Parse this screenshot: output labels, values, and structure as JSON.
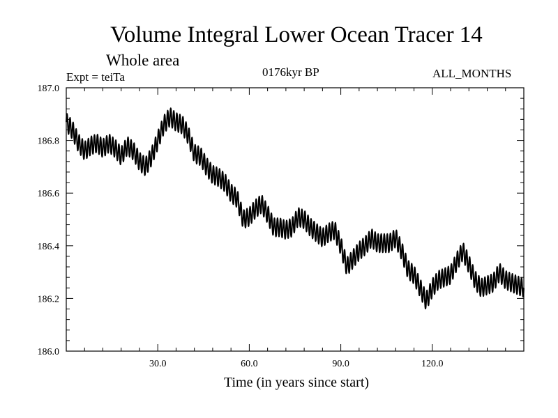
{
  "chart_data": {
    "type": "line",
    "title": "Volume Integral Lower Ocean Tracer 14",
    "subtitle": "Whole area",
    "annotations": {
      "experiment": "Expt = teiTa",
      "period": "0176kyr BP",
      "months": "ALL_MONTHS"
    },
    "xlabel": "Time (in years since start)",
    "ylabel": "",
    "xlim": [
      0,
      150
    ],
    "ylim": [
      186.0,
      187.0
    ],
    "x_ticks": [
      30,
      60,
      90,
      120
    ],
    "x_tick_labels": [
      "30.0",
      "60.0",
      "90.0",
      "120.0"
    ],
    "y_ticks": [
      186.0,
      186.2,
      186.4,
      186.6,
      186.8,
      187.0
    ],
    "y_tick_labels": [
      "186.0",
      "186.2",
      "186.4",
      "186.6",
      "186.8",
      "187.0"
    ],
    "series": [
      {
        "name": "Lower Ocean Tracer 14",
        "color": "#000000",
        "seasonal_amplitude": 0.035,
        "x": [
          0,
          2,
          4,
          6,
          8,
          10,
          12,
          14,
          16,
          18,
          20,
          22,
          24,
          26,
          28,
          30,
          32,
          34,
          36,
          38,
          40,
          42,
          44,
          46,
          48,
          50,
          52,
          54,
          56,
          58,
          60,
          62,
          64,
          66,
          68,
          70,
          72,
          74,
          76,
          78,
          80,
          82,
          84,
          86,
          88,
          90,
          92,
          94,
          96,
          98,
          100,
          102,
          104,
          106,
          108,
          110,
          112,
          114,
          116,
          118,
          120,
          122,
          124,
          126,
          128,
          130,
          132,
          134,
          136,
          138,
          140,
          142,
          144,
          146,
          148,
          150
        ],
        "values": [
          186.87,
          186.84,
          186.79,
          186.76,
          186.78,
          186.79,
          186.77,
          186.79,
          186.77,
          186.74,
          186.78,
          186.76,
          186.72,
          186.7,
          186.74,
          186.8,
          186.86,
          186.89,
          186.87,
          186.86,
          186.82,
          186.75,
          186.74,
          186.7,
          186.67,
          186.66,
          186.64,
          186.6,
          186.58,
          186.5,
          186.51,
          186.54,
          186.56,
          186.52,
          186.47,
          186.47,
          186.46,
          186.47,
          186.51,
          186.5,
          186.47,
          186.45,
          186.43,
          186.45,
          186.46,
          186.4,
          186.32,
          186.35,
          186.38,
          186.4,
          186.43,
          186.41,
          186.41,
          186.41,
          186.43,
          186.38,
          186.31,
          186.29,
          186.24,
          186.19,
          186.24,
          186.27,
          186.28,
          186.29,
          186.34,
          186.38,
          186.33,
          186.27,
          186.24,
          186.25,
          186.26,
          186.3,
          186.27,
          186.26,
          186.25,
          186.24
        ]
      }
    ]
  }
}
